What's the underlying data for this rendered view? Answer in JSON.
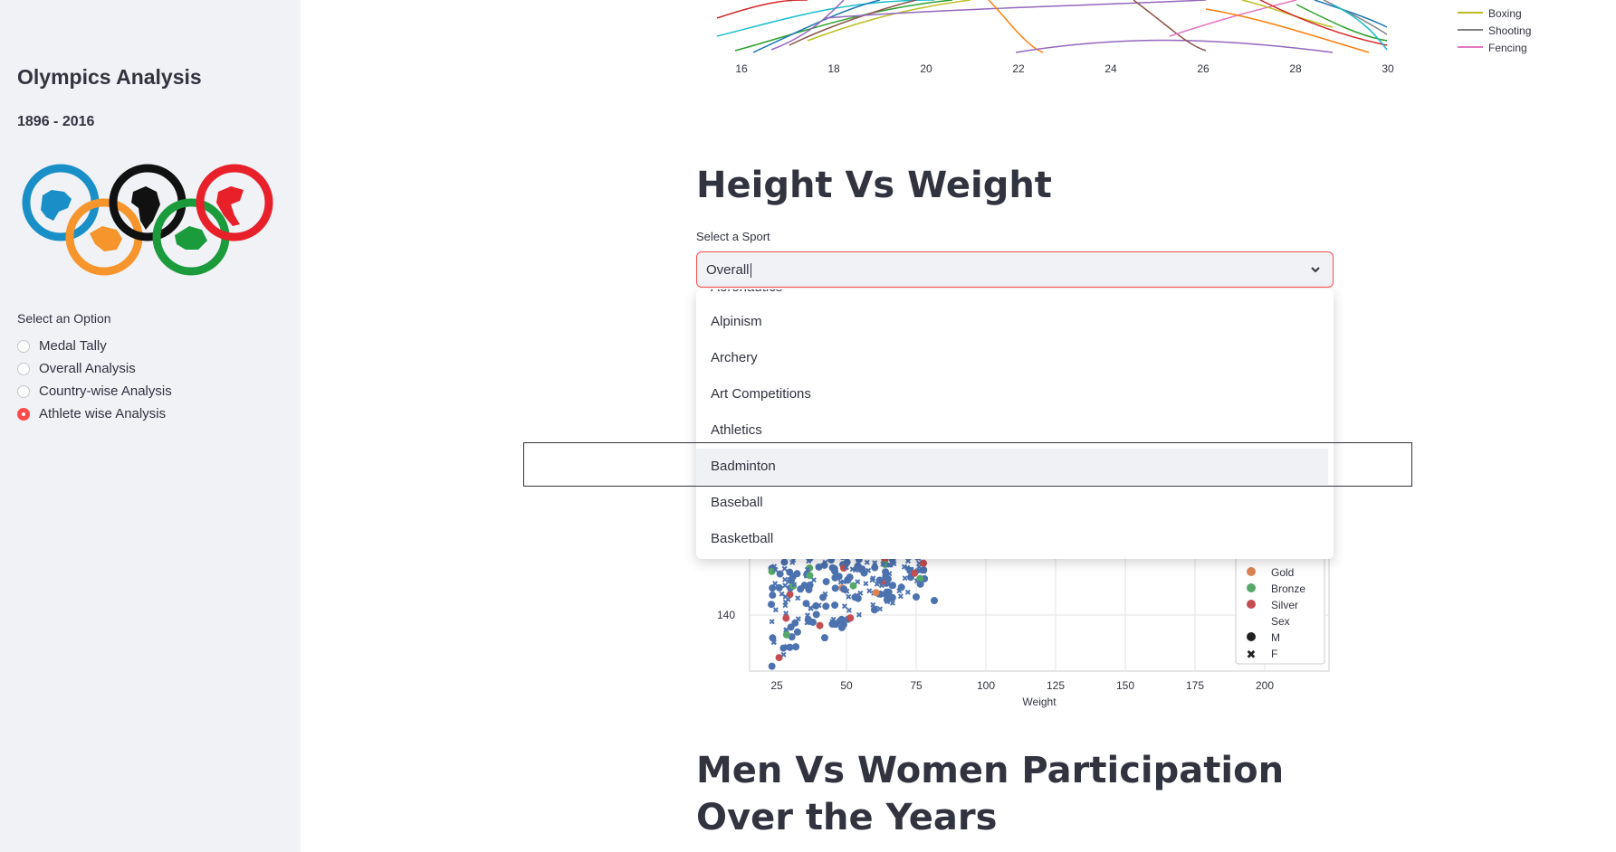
{
  "sidebar": {
    "title": "Olympics Analysis",
    "years": "1896 - 2016",
    "option_label": "Select an Option",
    "options": [
      "Medal Tally",
      "Overall Analysis",
      "Country-wise Analysis",
      "Athlete wise Analysis"
    ],
    "selected_option": "Athlete wise Analysis"
  },
  "top_chart": {
    "x_ticks": [
      "16",
      "18",
      "20",
      "22",
      "24",
      "26",
      "28",
      "30"
    ],
    "legend": [
      {
        "name": "Boxing",
        "color": "#bcbd22"
      },
      {
        "name": "Shooting",
        "color": "#7f7f7f"
      },
      {
        "name": "Fencing",
        "color": "#e377c2"
      }
    ]
  },
  "height_weight": {
    "title": "Height Vs Weight",
    "select_label": "Select a Sport",
    "select_value": "Overall",
    "dropdown_partial": "Aeronautics",
    "dropdown_items": [
      "Alpinism",
      "Archery",
      "Art Competitions",
      "Athletics",
      "Badminton",
      "Baseball",
      "Basketball"
    ],
    "highlighted_item": "Badminton"
  },
  "chart_data": {
    "type": "scatter",
    "xlabel": "Weight",
    "ylabel": "",
    "x_ticks": [
      "25",
      "50",
      "75",
      "100",
      "125",
      "150",
      "175",
      "200"
    ],
    "y_ticks": [
      "140"
    ],
    "legend": {
      "medal_entries": [
        {
          "name": "Gold",
          "color": "#dd8452"
        },
        {
          "name": "Bronze",
          "color": "#55a868"
        },
        {
          "name": "Silver",
          "color": "#c44e52"
        }
      ],
      "sex_title": "Sex",
      "sex_entries": [
        "M",
        "F"
      ]
    }
  },
  "men_women": {
    "title": "Men Vs Women Participation Over the Years"
  }
}
